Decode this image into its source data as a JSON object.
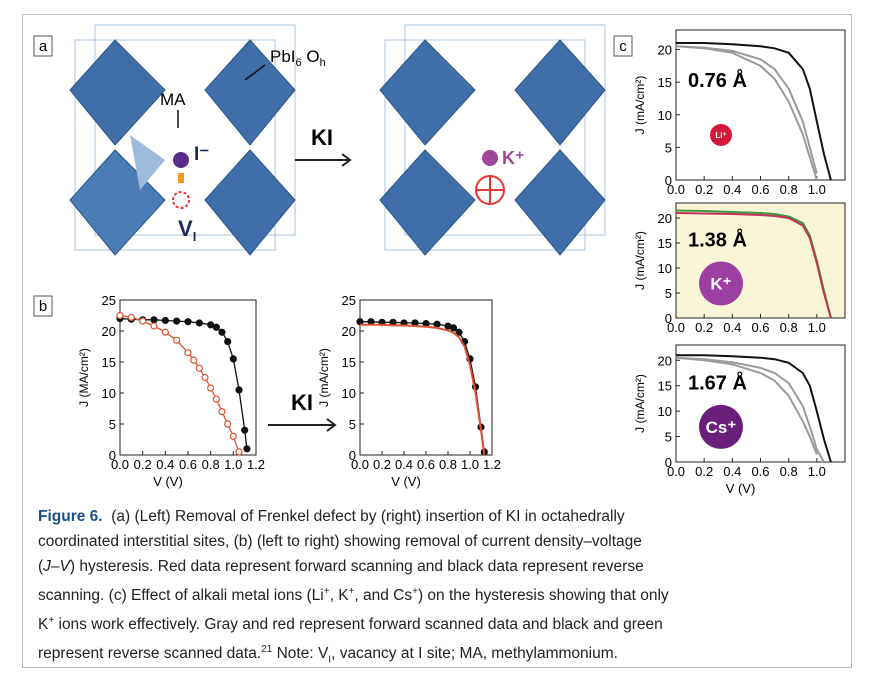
{
  "figure": {
    "panel_a": {
      "label": "a",
      "ma": "MA",
      "pbi": "PbI",
      "pbi_sub": "6",
      "pbi_tail": " O",
      "pbi_tail_sub": "h",
      "iodide": "I⁻",
      "vacancy": "V",
      "vacancy_sub": "I",
      "reagent": "KI",
      "potassium": "K⁺"
    },
    "panel_b": {
      "label": "b",
      "reagent": "KI"
    },
    "panel_c": {
      "label": "c"
    }
  },
  "chart_data": [
    {
      "type": "line",
      "xlabel": "V (V)",
      "ylabel": "J (MA/cm²)",
      "xlim": [
        0,
        1.2
      ],
      "ylim": [
        0,
        25
      ],
      "xticks": [
        {
          "value": 0,
          "label": "0.0"
        },
        0.2,
        0.4,
        0.6,
        0.8,
        {
          "value": 1,
          "label": "1.0"
        },
        1.2
      ],
      "yticks": [
        0,
        5,
        10,
        15,
        20,
        25
      ],
      "series": [
        {
          "color": "#111111",
          "marker": "filled",
          "x": [
            0,
            0.1,
            0.2,
            0.3,
            0.4,
            0.5,
            0.6,
            0.7,
            0.8,
            0.85,
            0.9,
            0.95,
            1.0,
            1.05,
            1.1,
            1.12
          ],
          "values": [
            22,
            21.9,
            21.8,
            21.8,
            21.7,
            21.6,
            21.5,
            21.3,
            21,
            20.6,
            19.8,
            18.3,
            15.5,
            10.5,
            4,
            1
          ]
        },
        {
          "color": "#e0522f",
          "marker": "open",
          "x": [
            0,
            0.1,
            0.2,
            0.3,
            0.4,
            0.5,
            0.6,
            0.65,
            0.7,
            0.75,
            0.8,
            0.85,
            0.9,
            0.95,
            1.0,
            1.05
          ],
          "values": [
            22.5,
            22.2,
            21.6,
            20.8,
            19.8,
            18.5,
            16.5,
            15.3,
            14,
            12.5,
            10.8,
            9,
            7,
            5,
            3,
            0.5
          ]
        }
      ]
    },
    {
      "type": "line",
      "xlabel": "V (V)",
      "ylabel": "J (mA/cm²)",
      "xlim": [
        0,
        1.2
      ],
      "ylim": [
        0,
        25
      ],
      "xticks": [
        {
          "value": 0,
          "label": "0.0"
        },
        0.2,
        0.4,
        0.6,
        0.8,
        {
          "value": 1,
          "label": "1.0"
        },
        1.2
      ],
      "yticks": [
        0,
        5,
        10,
        15,
        20,
        25
      ],
      "series": [
        {
          "color": "#111111",
          "marker": "filled",
          "x": [
            0,
            0.1,
            0.2,
            0.3,
            0.4,
            0.5,
            0.6,
            0.7,
            0.8,
            0.85,
            0.9,
            0.95,
            1.0,
            1.05,
            1.1,
            1.13
          ],
          "values": [
            21.5,
            21.5,
            21.4,
            21.4,
            21.3,
            21.3,
            21.2,
            21.1,
            20.8,
            20.5,
            19.8,
            18.3,
            15.5,
            11,
            4.5,
            0.5
          ]
        },
        {
          "color": "#e0522f",
          "marker": "line",
          "x": [
            0,
            0.1,
            0.2,
            0.3,
            0.4,
            0.5,
            0.6,
            0.7,
            0.8,
            0.85,
            0.9,
            0.95,
            1.0,
            1.05,
            1.1,
            1.13
          ],
          "values": [
            21,
            21,
            21,
            20.9,
            20.9,
            20.8,
            20.7,
            20.5,
            20.1,
            19.7,
            19,
            17.5,
            14.5,
            10,
            4,
            0
          ]
        }
      ]
    },
    {
      "type": "line",
      "xlabel": "",
      "ylabel": "J (mA/cm²)",
      "xlim": [
        0,
        1.2
      ],
      "ylim": [
        0,
        23
      ],
      "xticks": [
        {
          "value": 0,
          "label": "0.0"
        },
        0.2,
        0.4,
        0.6,
        0.8,
        {
          "value": 1,
          "label": "1.0"
        }
      ],
      "yticks": [
        0,
        5,
        10,
        15,
        20
      ],
      "radius_text": "0.76 Å",
      "ion": {
        "text": "Li⁺",
        "color": "#d0193a"
      },
      "series": [
        {
          "color": "#9a9a9a",
          "marker": "line",
          "x": [
            0,
            0.2,
            0.4,
            0.6,
            0.7,
            0.8,
            0.9,
            0.95,
            1.0,
            1.05,
            1.1
          ],
          "values": [
            20.5,
            20.3,
            19.8,
            18.5,
            17,
            14,
            9,
            5,
            1,
            null,
            null
          ]
        },
        {
          "color": "#9a9a9a",
          "marker": "line",
          "x": [
            0,
            0.2,
            0.4,
            0.6,
            0.7,
            0.8,
            0.9,
            0.95,
            1.0,
            1.05,
            1.1
          ],
          "values": [
            20.5,
            20.2,
            19.5,
            17.5,
            15.5,
            12,
            7,
            3.5,
            0,
            null,
            null
          ]
        },
        {
          "color": "#111111",
          "marker": "line",
          "x": [
            0,
            0.2,
            0.4,
            0.6,
            0.7,
            0.8,
            0.9,
            0.95,
            1.0,
            1.05,
            1.1
          ],
          "values": [
            21,
            21,
            20.8,
            20.5,
            20.2,
            19.5,
            17,
            14,
            9,
            4,
            0
          ]
        }
      ]
    },
    {
      "type": "line",
      "xlabel": "",
      "ylabel": "J (mA/cm²)",
      "xlim": [
        0,
        1.2
      ],
      "ylim": [
        0,
        23
      ],
      "xticks": [
        {
          "value": 0,
          "label": "0.0"
        },
        0.2,
        0.4,
        0.6,
        0.8,
        {
          "value": 1,
          "label": "1.0"
        }
      ],
      "yticks": [
        0,
        5,
        10,
        15,
        20
      ],
      "background": "#fbf5d8",
      "radius_text": "1.38 Å",
      "ion": {
        "text": "K⁺",
        "color": "#9b3fa3"
      },
      "series": [
        {
          "color": "#3c9a3c",
          "marker": "line",
          "x": [
            0,
            0.2,
            0.4,
            0.6,
            0.7,
            0.8,
            0.9,
            0.95,
            1.0,
            1.05,
            1.1
          ],
          "values": [
            21.5,
            21.4,
            21.2,
            21,
            20.8,
            20.3,
            19,
            16.5,
            11.5,
            5.5,
            0
          ]
        },
        {
          "color": "#c0325a",
          "marker": "line",
          "x": [
            0,
            0.2,
            0.4,
            0.6,
            0.7,
            0.8,
            0.9,
            0.95,
            1.0,
            1.05,
            1.1
          ],
          "values": [
            21,
            20.9,
            20.8,
            20.6,
            20.4,
            20,
            18.5,
            16,
            11,
            5,
            0
          ]
        }
      ]
    },
    {
      "type": "line",
      "xlabel": "V (V)",
      "ylabel": "J (mA/cm²)",
      "xlim": [
        0,
        1.2
      ],
      "ylim": [
        0,
        23
      ],
      "xticks": [
        {
          "value": 0,
          "label": "0.0"
        },
        0.2,
        0.4,
        0.6,
        0.8,
        {
          "value": 1,
          "label": "1.0"
        }
      ],
      "yticks": [
        0,
        5,
        10,
        15,
        20
      ],
      "radius_text": "1.67 Å",
      "ion": {
        "text": "Cs⁺",
        "color": "#6a1f7a"
      },
      "series": [
        {
          "color": "#9a9a9a",
          "marker": "line",
          "x": [
            0,
            0.2,
            0.4,
            0.6,
            0.7,
            0.8,
            0.9,
            0.95,
            1.0,
            1.05,
            1.1
          ],
          "values": [
            20.5,
            20,
            19.2,
            17.5,
            16,
            13,
            8,
            5,
            1.5,
            null,
            null
          ]
        },
        {
          "color": "#9a9a9a",
          "marker": "line",
          "x": [
            0,
            0.2,
            0.4,
            0.6,
            0.7,
            0.8,
            0.9,
            0.95,
            1.0,
            1.05,
            1.1
          ],
          "values": [
            20.5,
            20.2,
            19.6,
            18.5,
            17.5,
            15.5,
            11,
            7,
            2.5,
            0,
            null
          ]
        },
        {
          "color": "#111111",
          "marker": "line",
          "x": [
            0,
            0.2,
            0.4,
            0.6,
            0.7,
            0.8,
            0.9,
            0.95,
            1.0,
            1.05,
            1.1
          ],
          "values": [
            21,
            21,
            20.8,
            20.5,
            20.2,
            19.5,
            17.5,
            15,
            10,
            4.5,
            0
          ]
        }
      ]
    }
  ],
  "caption": [
    [
      {
        "text": "Figure 6.",
        "style": "bold"
      },
      {
        "text": "  (a) (Left) Removal of Frenkel defect by (right) insertion of KI in octahedrally"
      }
    ],
    [
      {
        "text": "coordinated interstitial sites, (b) (left to right) showing removal of current density–voltage"
      }
    ],
    [
      {
        "text": "("
      },
      {
        "text": "J",
        "style": "italic"
      },
      {
        "text": "–"
      },
      {
        "text": "V",
        "style": "italic"
      },
      {
        "text": ") hysteresis. Red data represent forward scanning and black data represent reverse"
      }
    ],
    [
      {
        "text": "scanning. (c) Effect of alkali metal ions (Li"
      },
      {
        "text": "+",
        "style": "sup"
      },
      {
        "text": ", K"
      },
      {
        "text": "+",
        "style": "sup"
      },
      {
        "text": ", and Cs"
      },
      {
        "text": "+",
        "style": "sup"
      },
      {
        "text": ") on the hysteresis showing that only"
      }
    ],
    [
      {
        "text": "K"
      },
      {
        "text": "+",
        "style": "sup"
      },
      {
        "text": " ions work effectively. Gray and red represent forward scanned data and black and green"
      }
    ],
    [
      {
        "text": "represent reverse scanned data."
      },
      {
        "text": "21",
        "style": "sup"
      },
      {
        "text": " Note: V"
      },
      {
        "text": "I",
        "style": "sub"
      },
      {
        "text": ", vacancy at I site; MA, methylammonium."
      }
    ]
  ]
}
